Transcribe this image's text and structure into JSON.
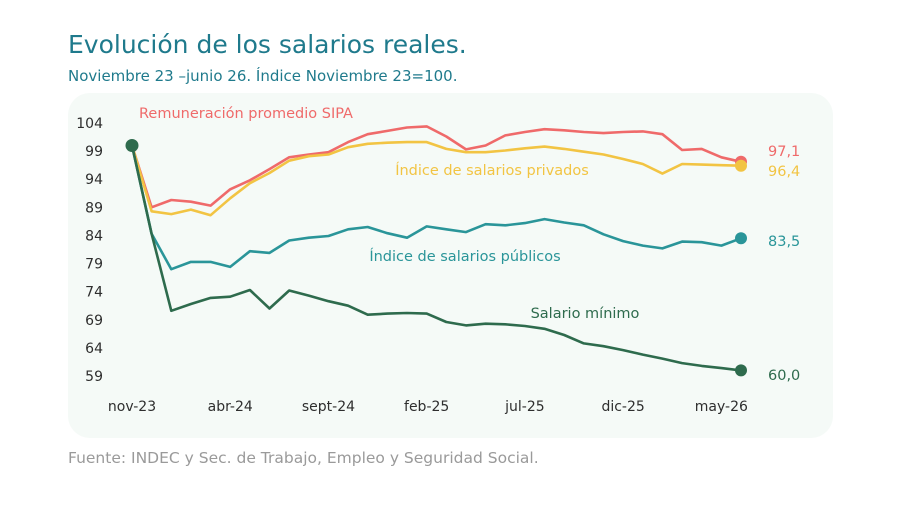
{
  "title": "Evolución de los salarios reales.",
  "subtitle": "Noviembre 23 –junio 26. Índice Noviembre 23=100.",
  "source": "Fuente: INDEC y Sec. de Trabajo, Empleo y Seguridad Social.",
  "chart_data": {
    "type": "line",
    "title": "Evolución de los salarios reales.",
    "subtitle": "Noviembre 23 –junio 26. Índice Noviembre 23=100.",
    "xlabel": "",
    "ylabel": "",
    "ylim": [
      59,
      104
    ],
    "yticks": [
      "104",
      "99",
      "94",
      "89",
      "84",
      "79",
      "74",
      "69",
      "64",
      "59"
    ],
    "x": [
      "nov-23",
      "dic-23",
      "ene-24",
      "feb-24",
      "mar-24",
      "abr-24",
      "may-24",
      "jun-24",
      "jul-24",
      "ago-24",
      "sept-24",
      "oct-24",
      "nov-24",
      "dic-24",
      "ene-25",
      "feb-25",
      "mar-25",
      "abr-25",
      "may-25",
      "jun-25",
      "jul-25",
      "ago-25",
      "sept-25",
      "oct-25",
      "nov-25",
      "dic-25",
      "ene-26",
      "feb-26",
      "mar-26",
      "abr-26",
      "may-26",
      "jun-26"
    ],
    "xticks": [
      {
        "index": 0,
        "label": "nov-23"
      },
      {
        "index": 5,
        "label": "abr-24"
      },
      {
        "index": 10,
        "label": "sept-24"
      },
      {
        "index": 15,
        "label": "feb-25"
      },
      {
        "index": 20,
        "label": "jul-25"
      },
      {
        "index": 25,
        "label": "dic-25"
      },
      {
        "index": 30,
        "label": "may-26"
      }
    ],
    "grid": false,
    "series": [
      {
        "name": "Remuneración promedio SIPA",
        "color": "#ef6a6a",
        "end_label": "97,1",
        "values": [
          100,
          89.0,
          90.3,
          90.0,
          89.3,
          92.2,
          93.8,
          95.8,
          97.9,
          98.4,
          98.8,
          100.6,
          102.0,
          102.6,
          103.2,
          103.4,
          101.6,
          99.3,
          100.0,
          101.8,
          102.4,
          102.9,
          102.7,
          102.4,
          102.2,
          102.4,
          102.5,
          102.0,
          99.2,
          99.4,
          97.9,
          97.1
        ]
      },
      {
        "name": "Índice de salarios privados",
        "color": "#f2c443",
        "end_label": "96,4",
        "values": [
          100,
          88.3,
          87.8,
          88.6,
          87.6,
          90.6,
          93.3,
          95.1,
          97.3,
          98.1,
          98.4,
          99.7,
          100.3,
          100.5,
          100.6,
          100.6,
          99.4,
          98.8,
          98.8,
          99.1,
          99.5,
          99.8,
          99.4,
          98.9,
          98.4,
          97.6,
          96.7,
          95.0,
          96.7,
          96.6,
          96.5,
          96.4
        ]
      },
      {
        "name": "Índice de salarios públicos",
        "color": "#2a9599",
        "end_label": "83,5",
        "values": [
          100,
          84.3,
          78.0,
          79.3,
          79.3,
          78.4,
          81.2,
          80.9,
          83.1,
          83.6,
          83.9,
          85.1,
          85.5,
          84.4,
          83.6,
          85.6,
          85.1,
          84.6,
          86.0,
          85.8,
          86.2,
          86.9,
          86.3,
          85.8,
          84.2,
          83.0,
          82.2,
          81.7,
          82.9,
          82.8,
          82.2,
          83.5
        ]
      },
      {
        "name": "Salario mínimo",
        "color": "#2e6b4d",
        "end_label": "60,0",
        "values": [
          100,
          84.3,
          70.6,
          71.8,
          72.9,
          73.1,
          74.3,
          71.0,
          74.2,
          73.3,
          72.3,
          71.5,
          69.9,
          70.1,
          70.2,
          70.1,
          68.6,
          68.0,
          68.3,
          68.2,
          67.9,
          67.4,
          66.3,
          64.8,
          64.3,
          63.6,
          62.8,
          62.1,
          61.3,
          60.8,
          60.4,
          60.0
        ]
      }
    ],
    "line_labels": [
      {
        "series": 0,
        "text": "Remuneración promedio SIPA"
      },
      {
        "series": 1,
        "text": "Índice de salarios privados"
      },
      {
        "series": 2,
        "text": "Índice de salarios públicos"
      },
      {
        "series": 3,
        "text": "Salario mínimo"
      }
    ]
  }
}
